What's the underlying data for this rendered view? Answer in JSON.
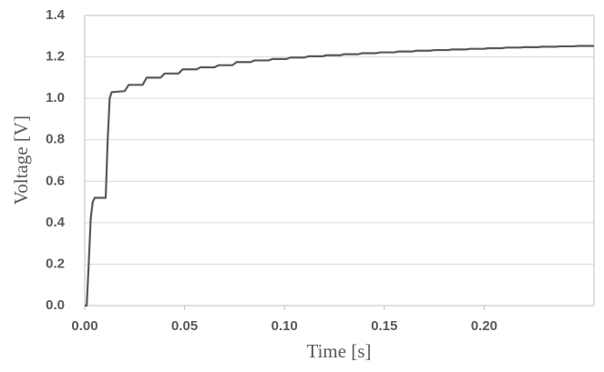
{
  "chart_data": {
    "type": "line",
    "x_label": "Time [s]",
    "y_label": "Voltage [V]",
    "xlim": [
      0,
      0.255
    ],
    "ylim": [
      0,
      1.4
    ],
    "xticks": [
      {
        "value": 0,
        "label": "0.00"
      },
      0.05,
      {
        "value": 0.1,
        "label": "0.10"
      },
      0.15,
      {
        "value": 0.2,
        "label": "0.20"
      }
    ],
    "yticks": [
      {
        "value": 0,
        "label": "0.0"
      },
      0.2,
      0.4,
      0.6,
      0.8,
      {
        "value": 1,
        "label": "1.0"
      },
      1.2,
      1.4
    ],
    "grid": true,
    "series": [
      {
        "color": "#595959",
        "x": [
          0,
          0.001,
          0.002,
          0.003,
          0.004,
          0.005,
          0.0105,
          0.0115,
          0.0125,
          0.0135,
          0.02,
          0.022,
          0.029,
          0.031,
          0.038,
          0.04,
          0.047,
          0.049,
          0.056,
          0.058,
          0.065,
          0.067,
          0.074,
          0.076,
          0.083,
          0.085,
          0.092,
          0.094,
          0.101,
          0.103,
          0.11,
          0.112,
          0.119,
          0.121,
          0.128,
          0.13,
          0.137,
          0.139,
          0.146,
          0.148,
          0.155,
          0.157,
          0.164,
          0.166,
          0.173,
          0.175,
          0.182,
          0.184,
          0.191,
          0.193,
          0.2,
          0.202,
          0.209,
          0.211,
          0.218,
          0.22,
          0.227,
          0.229,
          0.236,
          0.238,
          0.245,
          0.247,
          0.255
        ],
        "values": [
          0,
          0,
          0.2,
          0.42,
          0.5,
          0.52,
          0.52,
          0.8,
          1.0,
          1.03,
          1.035,
          1.065,
          1.065,
          1.1,
          1.1,
          1.12,
          1.12,
          1.14,
          1.14,
          1.15,
          1.15,
          1.16,
          1.16,
          1.175,
          1.175,
          1.183,
          1.183,
          1.19,
          1.19,
          1.197,
          1.197,
          1.203,
          1.203,
          1.208,
          1.208,
          1.213,
          1.213,
          1.218,
          1.218,
          1.222,
          1.222,
          1.226,
          1.226,
          1.23,
          1.23,
          1.233,
          1.233,
          1.236,
          1.236,
          1.239,
          1.239,
          1.242,
          1.242,
          1.245,
          1.245,
          1.247,
          1.247,
          1.249,
          1.249,
          1.251,
          1.251,
          1.253,
          1.253
        ]
      }
    ]
  }
}
